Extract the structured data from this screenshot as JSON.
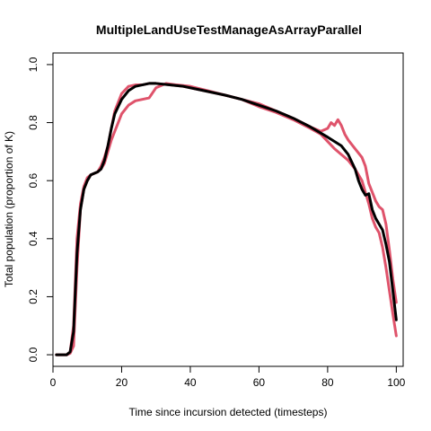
{
  "chart_data": {
    "type": "line",
    "title": "MultipleLandUseTestManageAsArrayParallel",
    "xlabel": "Time since incursion detected (timesteps)",
    "ylabel": "Total population (proportion of K)",
    "xlim": [
      0,
      102
    ],
    "ylim": [
      -0.04,
      1.04
    ],
    "x_ticks": [
      0,
      20,
      40,
      60,
      80,
      100
    ],
    "y_ticks": [
      0.0,
      0.2,
      0.4,
      0.6,
      0.8,
      1.0
    ],
    "x_tick_labels": [
      "0",
      "20",
      "40",
      "60",
      "80",
      "100"
    ],
    "y_tick_labels": [
      "0.0",
      "0.2",
      "0.4",
      "0.6",
      "0.8",
      "1.0"
    ],
    "grid": false,
    "legend": "none",
    "series": [
      {
        "color": "#DF536B",
        "x": [
          1,
          3,
          4,
          5,
          6,
          7,
          8,
          9,
          10,
          11,
          12,
          13,
          14,
          15,
          16,
          17,
          18,
          19,
          20,
          22,
          24,
          26,
          28,
          30,
          33,
          36,
          40,
          45,
          50,
          55,
          60,
          65,
          70,
          75,
          78,
          80,
          82,
          84,
          86,
          88,
          90,
          92,
          93,
          94,
          95,
          96,
          97,
          98,
          99,
          100
        ],
        "y": [
          0.0,
          0.0,
          0.0,
          0.005,
          0.03,
          0.3,
          0.5,
          0.57,
          0.6,
          0.62,
          0.625,
          0.63,
          0.64,
          0.66,
          0.7,
          0.74,
          0.77,
          0.8,
          0.83,
          0.86,
          0.875,
          0.88,
          0.885,
          0.92,
          0.935,
          0.93,
          0.925,
          0.91,
          0.895,
          0.88,
          0.855,
          0.835,
          0.81,
          0.78,
          0.76,
          0.735,
          0.71,
          0.69,
          0.67,
          0.64,
          0.6,
          0.52,
          0.47,
          0.44,
          0.42,
          0.37,
          0.3,
          0.22,
          0.14,
          0.065
        ]
      },
      {
        "color": "#DF536B",
        "x": [
          1,
          3,
          4,
          5,
          6,
          7,
          8,
          9,
          10,
          11,
          12,
          13,
          14,
          15,
          16,
          17,
          18,
          20,
          22,
          24,
          26,
          28,
          30,
          34,
          38,
          42,
          46,
          50,
          55,
          60,
          65,
          70,
          75,
          78,
          80,
          81,
          82,
          83,
          84,
          85,
          86,
          88,
          90,
          91,
          92,
          93,
          94,
          95,
          96,
          97,
          98,
          99,
          100
        ],
        "y": [
          0.0,
          0.0,
          0.0,
          0.01,
          0.1,
          0.4,
          0.52,
          0.58,
          0.61,
          0.62,
          0.625,
          0.63,
          0.65,
          0.68,
          0.72,
          0.78,
          0.84,
          0.9,
          0.925,
          0.93,
          0.93,
          0.935,
          0.935,
          0.93,
          0.925,
          0.915,
          0.905,
          0.895,
          0.88,
          0.865,
          0.84,
          0.815,
          0.785,
          0.77,
          0.78,
          0.8,
          0.79,
          0.81,
          0.79,
          0.76,
          0.74,
          0.71,
          0.68,
          0.65,
          0.59,
          0.56,
          0.53,
          0.51,
          0.5,
          0.45,
          0.36,
          0.26,
          0.18
        ]
      },
      {
        "color": "#000000",
        "x": [
          1,
          3,
          4,
          5,
          6,
          7,
          8,
          9,
          10,
          11,
          12,
          13,
          14,
          15,
          16,
          17,
          18,
          20,
          22,
          24,
          26,
          28,
          30,
          34,
          38,
          42,
          46,
          50,
          55,
          60,
          65,
          70,
          75,
          80,
          84,
          86,
          88,
          89,
          90,
          91,
          92,
          93,
          94,
          95,
          96,
          97,
          98,
          99,
          100
        ],
        "y": [
          0.0,
          0.0,
          0.0,
          0.01,
          0.08,
          0.35,
          0.5,
          0.57,
          0.6,
          0.62,
          0.625,
          0.63,
          0.64,
          0.67,
          0.72,
          0.78,
          0.83,
          0.88,
          0.91,
          0.925,
          0.93,
          0.935,
          0.935,
          0.93,
          0.925,
          0.915,
          0.905,
          0.895,
          0.88,
          0.86,
          0.84,
          0.815,
          0.785,
          0.75,
          0.72,
          0.69,
          0.64,
          0.6,
          0.57,
          0.55,
          0.555,
          0.5,
          0.47,
          0.45,
          0.43,
          0.38,
          0.32,
          0.22,
          0.12
        ]
      }
    ]
  }
}
